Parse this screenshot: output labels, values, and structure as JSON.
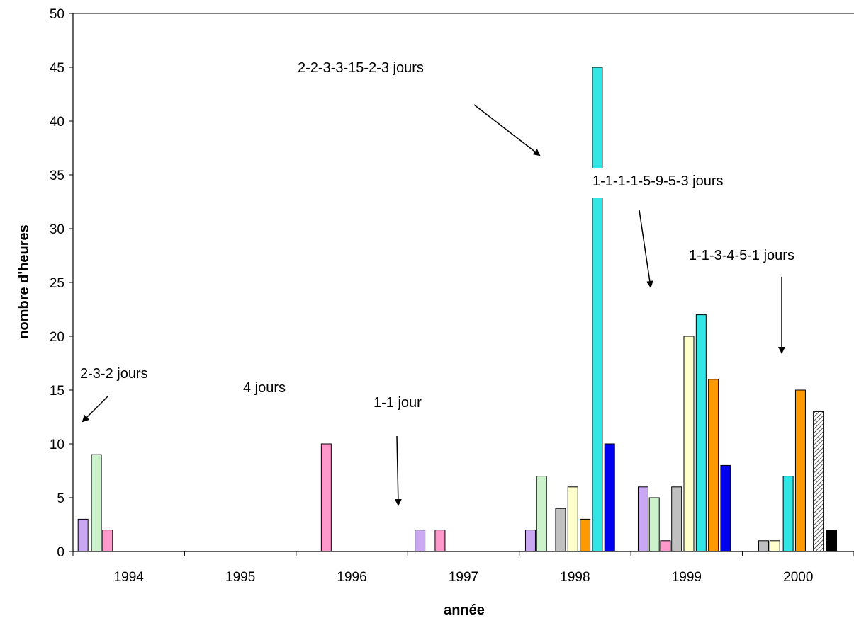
{
  "chart_data": {
    "type": "bar",
    "xlabel": "année",
    "ylabel": "nombre d'heures",
    "ylim": [
      0,
      50
    ],
    "yticks": [
      0,
      5,
      10,
      15,
      20,
      25,
      30,
      35,
      40,
      45,
      50
    ],
    "categories": [
      "1994",
      "1995",
      "1996",
      "1997",
      "1998",
      "1999",
      "2000"
    ],
    "grid": false,
    "legend": "none",
    "bars": [
      {
        "period": 0.09,
        "value": 3,
        "color": "#c9a7f2"
      },
      {
        "period": 0.21,
        "value": 9,
        "color": "#ccf2cc"
      },
      {
        "period": 0.31,
        "value": 2,
        "color": "#ff99cc"
      },
      {
        "period": 2.27,
        "value": 10,
        "color": "#ff99cc"
      },
      {
        "period": 3.11,
        "value": 2,
        "color": "#c9a7f2"
      },
      {
        "period": 3.29,
        "value": 2,
        "color": "#ff99cc"
      },
      {
        "period": 4.1,
        "value": 2,
        "color": "#c9a7f2"
      },
      {
        "period": 4.2,
        "value": 7,
        "color": "#ccf2cc"
      },
      {
        "period": 4.37,
        "value": 4,
        "color": "#c0c0c0"
      },
      {
        "period": 4.48,
        "value": 6,
        "color": "#ffffcc"
      },
      {
        "period": 4.59,
        "value": 3,
        "color": "#ff9900"
      },
      {
        "period": 4.7,
        "value": 45,
        "color": "#33e6e6"
      },
      {
        "period": 4.81,
        "value": 10,
        "color": "#0000ee"
      },
      {
        "period": 5.11,
        "value": 6,
        "color": "#c9a7f2"
      },
      {
        "period": 5.21,
        "value": 5,
        "color": "#ccf2cc"
      },
      {
        "period": 5.31,
        "value": 1,
        "color": "#ff99cc"
      },
      {
        "period": 5.41,
        "value": 6,
        "color": "#c0c0c0"
      },
      {
        "period": 5.52,
        "value": 20,
        "color": "#ffffcc"
      },
      {
        "period": 5.63,
        "value": 22,
        "color": "#33e6e6"
      },
      {
        "period": 5.74,
        "value": 16,
        "color": "#ff9900"
      },
      {
        "period": 5.85,
        "value": 8,
        "color": "#0000ee"
      },
      {
        "period": 6.19,
        "value": 1,
        "color": "#c0c0c0"
      },
      {
        "period": 6.29,
        "value": 1,
        "color": "#ffffcc"
      },
      {
        "period": 6.41,
        "value": 7,
        "color": "#33e6e6"
      },
      {
        "period": 6.52,
        "value": 15,
        "color": "#ff9900"
      },
      {
        "period": 6.68,
        "value": 13,
        "color": "#aaaaaa",
        "pattern": "hatched"
      },
      {
        "period": 6.8,
        "value": 2,
        "color": "#000000"
      }
    ],
    "annotations": [
      {
        "text": "2-3-2 jours"
      },
      {
        "text": "4 jours"
      },
      {
        "text": "1-1 jour"
      },
      {
        "text": "2-2-3-3-15-2-3 jours"
      },
      {
        "text": "1-1-1-1-5-9-5-3 jours"
      },
      {
        "text": "1-1-3-4-5-1 jours"
      }
    ]
  }
}
